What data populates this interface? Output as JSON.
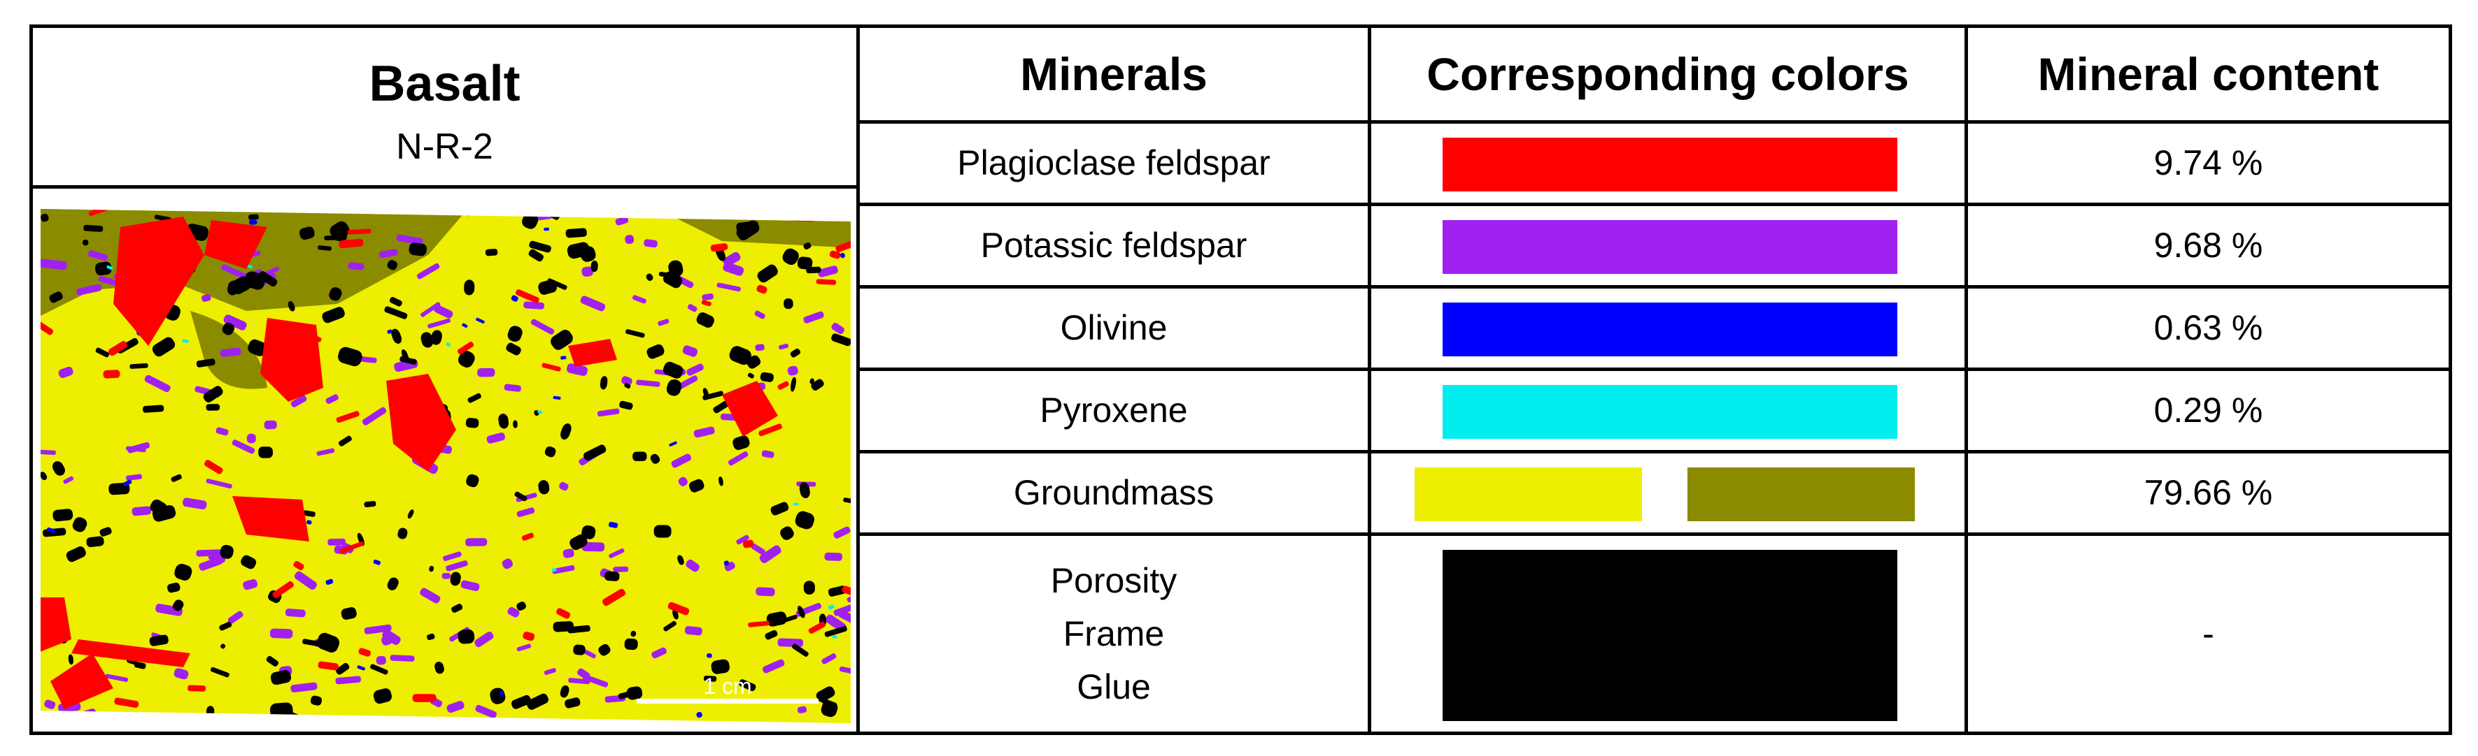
{
  "sample": {
    "title": "Basalt",
    "subtitle": "N-R-2",
    "scale_bar_label": "1 cm"
  },
  "table": {
    "headers": {
      "minerals": "Minerals",
      "colors": "Corresponding colors",
      "content": "Mineral content"
    },
    "rows": [
      {
        "mineral": "Plagioclase feldspar",
        "colors": [
          "#ff0000"
        ],
        "content": "9.74 %"
      },
      {
        "mineral": "Potassic feldspar",
        "colors": [
          "#a020f0"
        ],
        "content": "9.68 %"
      },
      {
        "mineral": "Olivine",
        "colors": [
          "#0000ff"
        ],
        "content": "0.63 %"
      },
      {
        "mineral": "Pyroxene",
        "colors": [
          "#00eeee"
        ],
        "content": "0.29 %"
      },
      {
        "mineral": "Groundmass",
        "colors": [
          "#eeee00",
          "#8b8b00"
        ],
        "content": "79.66 %"
      },
      {
        "mineral_lines": [
          "Porosity",
          "Frame",
          "Glue"
        ],
        "colors": [
          "#000000"
        ],
        "content": "-"
      }
    ]
  },
  "palette": {
    "groundmass_yellow": "#eeee00",
    "groundmass_olive": "#8b8b00",
    "plagioclase": "#ff0000",
    "potassic": "#a020f0",
    "olivine": "#0000ff",
    "pyroxene": "#00eeee",
    "pores": "#000000"
  }
}
